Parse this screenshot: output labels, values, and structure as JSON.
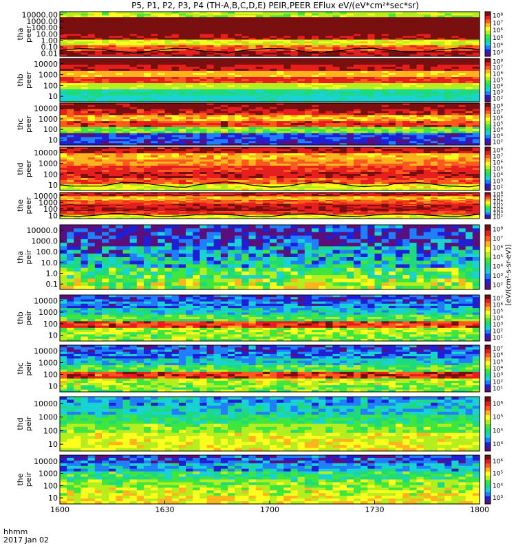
{
  "title": "P5, P1, P2, P3, P4 (TH-A,B,C,D,E) PEIR,PEER EFlux eV/(eV*cm²*sec*sr)",
  "colorbar_unit": "[eV/(cm²-s-sr-eV)]",
  "time_axis": {
    "label": "hhmm",
    "date": "2017 Jan 02",
    "ticks": [
      "1600",
      "1630",
      "1700",
      "1730",
      "1800"
    ],
    "range_minutes": [
      0,
      120
    ]
  },
  "colorscale": [
    "#5a0f7a",
    "#1f1fd6",
    "#1f7fff",
    "#19d2d2",
    "#1ed97d",
    "#3ee63e",
    "#b4ee1e",
    "#ffff1e",
    "#ffb41e",
    "#ff5a1e",
    "#e61e1e",
    "#7a0f0f"
  ],
  "chart_data": {
    "type": "heatmap",
    "x_label": "hhmm",
    "y_scale": "log",
    "panels": [
      {
        "probe": "tha",
        "species": "peer",
        "ylabel_top": "tha",
        "ylabel_bottom": "peer",
        "yticks": [
          "0.01",
          "0.10",
          "1.00",
          "10.00",
          "100.00",
          "1000.00",
          "10000.00"
        ],
        "cbar_ticks": [
          "10³",
          "10⁴",
          "10⁵",
          "10⁶",
          "10⁷",
          "10⁸"
        ],
        "bands": [
          0.92,
          0.8,
          0.6,
          0.95,
          1,
          1,
          1,
          0.55
        ],
        "noise": 0.08,
        "has_curve": true
      },
      {
        "probe": "thb",
        "species": "peer",
        "ylabel_top": "thb",
        "ylabel_bottom": "peer",
        "yticks": [
          "10",
          "100",
          "1000",
          "10000"
        ],
        "cbar_ticks": [
          "10²",
          "10³",
          "10⁴",
          "10⁵",
          "10⁶",
          "10⁷",
          "10⁸"
        ],
        "bands": [
          0.3,
          0.35,
          0.55,
          0.85,
          0.7,
          0.9,
          1
        ],
        "noise": 0.05,
        "has_curve": false
      },
      {
        "probe": "thc",
        "species": "peer",
        "ylabel_top": "thc",
        "ylabel_bottom": "peer",
        "yticks": [
          "10",
          "100",
          "1000",
          "10000"
        ],
        "cbar_ticks": [
          "10²",
          "10³",
          "10⁴",
          "10⁵",
          "10⁶",
          "10⁷",
          "10⁸"
        ],
        "bands": [
          0.12,
          0.15,
          0.5,
          0.85,
          0.7,
          0.9,
          1
        ],
        "noise": 0.1,
        "has_curve": false
      },
      {
        "probe": "thd",
        "species": "peer",
        "ylabel_top": "thd",
        "ylabel_bottom": "peer",
        "yticks": [
          "10",
          "100",
          "1000",
          "10000"
        ],
        "cbar_ticks": [
          "10²",
          "10³",
          "10⁴",
          "10⁵",
          "10⁶",
          "10⁷",
          "10⁸"
        ],
        "bands": [
          0.6,
          0.8,
          0.9,
          0.85,
          0.75,
          0.7,
          0.9
        ],
        "noise": 0.07,
        "has_curve": true
      },
      {
        "probe": "the",
        "species": "peer",
        "ylabel_top": "the",
        "ylabel_bottom": "peer",
        "yticks": [
          "10",
          "100",
          "1000",
          "10000"
        ],
        "cbar_ticks": [
          "10²",
          "10³",
          "10⁴",
          "10⁵",
          "10⁶",
          "10⁷",
          "10⁸"
        ],
        "bands": [
          0.6,
          0.85,
          0.92,
          0.9,
          0.8,
          0.7,
          0.9
        ],
        "noise": 0.07,
        "has_curve": true
      },
      {
        "probe": "tha",
        "species": "peir",
        "ylabel_top": "tha",
        "ylabel_bottom": "peir",
        "yticks": [
          "0.1",
          "1.0",
          "10.0",
          "100.0",
          "1000.0",
          "10000.0"
        ],
        "cbar_ticks": [
          "10²",
          "10³",
          "10⁴",
          "10⁵",
          "10⁶",
          "10⁷",
          "10⁸"
        ],
        "bands": [
          0.55,
          0.45,
          0.3,
          0.25,
          0.12,
          0.1
        ],
        "noise": 0.18,
        "has_curve": false
      },
      {
        "probe": "thb",
        "species": "peir",
        "ylabel_top": "thb",
        "ylabel_bottom": "peir",
        "yticks": [
          "10",
          "100",
          "1000",
          "10000"
        ],
        "cbar_ticks": [
          "10¹",
          "10²",
          "10³",
          "10⁴",
          "10⁵",
          "10⁶",
          "10⁷"
        ],
        "bands": [
          0.5,
          0.55,
          0.85,
          0.45,
          0.3,
          0.2,
          0.15
        ],
        "noise": 0.12,
        "has_curve": false
      },
      {
        "probe": "thc",
        "species": "peir",
        "ylabel_top": "thc",
        "ylabel_bottom": "peir",
        "yticks": [
          "10",
          "100",
          "1000",
          "10000"
        ],
        "cbar_ticks": [
          "10¹",
          "10²",
          "10³",
          "10⁴",
          "10⁵",
          "10⁶",
          "10⁷"
        ],
        "bands": [
          0.5,
          0.55,
          0.85,
          0.45,
          0.3,
          0.2,
          0.15
        ],
        "noise": 0.12,
        "has_curve": false
      },
      {
        "probe": "thd",
        "species": "peir",
        "ylabel_top": "thd",
        "ylabel_bottom": "peir",
        "yticks": [
          "10",
          "100",
          "1000",
          "10000"
        ],
        "cbar_ticks": [
          "10³",
          "10⁴",
          "10⁵",
          "10⁶"
        ],
        "bands": [
          0.6,
          0.6,
          0.5,
          0.4,
          0.3,
          0.25
        ],
        "noise": 0.1,
        "has_curve": false
      },
      {
        "probe": "the",
        "species": "peir",
        "ylabel_top": "the",
        "ylabel_bottom": "peir",
        "yticks": [
          "10",
          "100",
          "1000",
          "10000"
        ],
        "cbar_ticks": [
          "10³",
          "10⁴",
          "10⁵",
          "10⁶"
        ],
        "bands": [
          0.62,
          0.58,
          0.5,
          0.4,
          0.25,
          0.15
        ],
        "noise": 0.12,
        "has_curve": false
      }
    ]
  }
}
